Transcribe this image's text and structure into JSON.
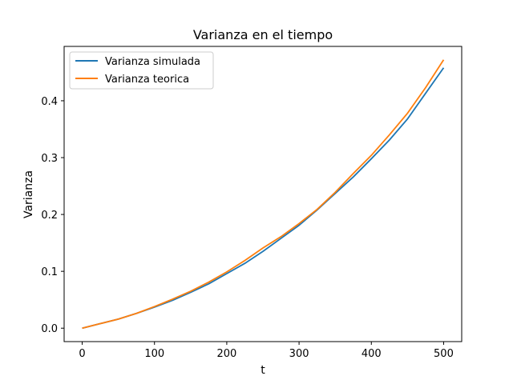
{
  "chart_data": {
    "type": "line",
    "title": "Varianza en el tiempo",
    "xlabel": "t",
    "ylabel": "Varianza",
    "xlim": [
      -25,
      525
    ],
    "ylim": [
      -0.0236,
      0.4956
    ],
    "xticks": [
      0,
      100,
      200,
      300,
      400,
      500
    ],
    "xtick_labels": [
      "0",
      "100",
      "200",
      "300",
      "400",
      "500"
    ],
    "yticks": [
      0.0,
      0.1,
      0.2,
      0.3,
      0.4
    ],
    "ytick_labels": [
      "0.0",
      "0.1",
      "0.2",
      "0.3",
      "0.4"
    ],
    "grid": false,
    "legend_position": "upper-left",
    "series": [
      {
        "name": "Varianza simulada",
        "color": "#1f77b4",
        "x": [
          0,
          25,
          50,
          75,
          100,
          125,
          150,
          175,
          200,
          225,
          250,
          275,
          300,
          325,
          350,
          375,
          400,
          425,
          450,
          475,
          500
        ],
        "y": [
          0.0,
          0.008,
          0.016,
          0.026,
          0.037,
          0.049,
          0.063,
          0.078,
          0.096,
          0.114,
          0.135,
          0.158,
          0.181,
          0.208,
          0.237,
          0.266,
          0.298,
          0.331,
          0.368,
          0.413,
          0.458
        ]
      },
      {
        "name": "Varianza teorica",
        "color": "#ff7f0e",
        "x": [
          0,
          25,
          50,
          75,
          100,
          125,
          150,
          175,
          200,
          225,
          250,
          275,
          300,
          325,
          350,
          375,
          400,
          425,
          450,
          475,
          500
        ],
        "y": [
          0.0,
          0.008,
          0.016,
          0.026,
          0.038,
          0.051,
          0.065,
          0.081,
          0.099,
          0.119,
          0.141,
          0.161,
          0.184,
          0.209,
          0.239,
          0.272,
          0.304,
          0.34,
          0.378,
          0.423,
          0.472
        ]
      }
    ]
  }
}
